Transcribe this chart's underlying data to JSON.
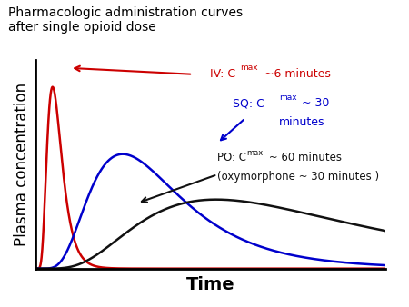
{
  "title_line1": "Pharmacologic administration curves",
  "title_line2": "after single opioid dose",
  "xlabel": "Time",
  "ylabel": "Plasma concentration",
  "bg_color": "#ffffff",
  "iv_color": "#cc0000",
  "sq_color": "#0000cc",
  "po_color": "#111111",
  "title_fontsize": 10,
  "ylabel_fontsize": 12,
  "xlabel_fontsize": 14,
  "iv_tmax": 6,
  "iv_sigma": 0.42,
  "iv_scale": 1.0,
  "sq_tmax": 30,
  "sq_sigma": 0.52,
  "sq_scale": 0.63,
  "po_tmax": 62,
  "po_sigma": 0.6,
  "po_scale": 0.38,
  "xlim": [
    0,
    120
  ],
  "ylim": [
    0,
    1.15
  ]
}
